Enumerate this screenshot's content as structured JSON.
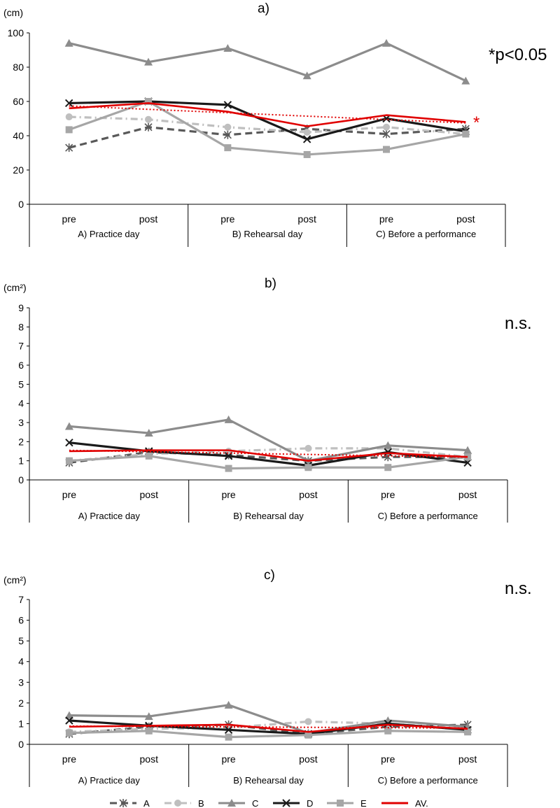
{
  "categories": [
    "pre",
    "post",
    "pre",
    "post",
    "pre",
    "post"
  ],
  "groups": [
    "A) Practice day",
    "B) Rehearsal day",
    "C) Before a performance"
  ],
  "legend": [
    {
      "name": "A",
      "color": "#595959",
      "dash": "10,6",
      "marker": "star"
    },
    {
      "name": "B",
      "color": "#bfbfbf",
      "dash": "10,5,2,5",
      "marker": "circle"
    },
    {
      "name": "C",
      "color": "#8c8c8c",
      "dash": "",
      "marker": "triangle"
    },
    {
      "name": "D",
      "color": "#1a1a1a",
      "dash": "",
      "marker": "x"
    },
    {
      "name": "E",
      "color": "#a6a6a6",
      "dash": "",
      "marker": "square"
    },
    {
      "name": "AV.",
      "color": "#e00000",
      "dash": "",
      "marker": "none"
    }
  ],
  "chart_data": [
    {
      "type": "line",
      "title": "a)",
      "unit": "(cm)",
      "significance": "*p<0.05",
      "marker_note": "*",
      "ylim": [
        0,
        100
      ],
      "yticks": [
        0,
        20,
        40,
        60,
        80,
        100
      ],
      "series": [
        {
          "name": "A",
          "values": [
            33,
            45,
            40.5,
            44,
            41,
            44
          ]
        },
        {
          "name": "B",
          "values": [
            51,
            49.5,
            45,
            42,
            45,
            41
          ]
        },
        {
          "name": "C",
          "values": [
            94,
            83,
            91,
            75,
            94,
            72
          ]
        },
        {
          "name": "D",
          "values": [
            59,
            60,
            58,
            38,
            50,
            42.5
          ]
        },
        {
          "name": "E",
          "values": [
            43.5,
            60,
            33,
            29,
            32,
            41
          ]
        },
        {
          "name": "AV.",
          "values": [
            56,
            59,
            54,
            45.5,
            52,
            48
          ]
        }
      ]
    },
    {
      "type": "line",
      "title": "b)",
      "unit": "(cm²)",
      "significance": "n.s.",
      "ylim": [
        0,
        9
      ],
      "yticks": [
        0,
        1,
        2,
        3,
        4,
        5,
        6,
        7,
        8,
        9
      ],
      "series": [
        {
          "name": "A",
          "values": [
            0.9,
            1.45,
            1.3,
            1.0,
            1.2,
            1.2
          ]
        },
        {
          "name": "B",
          "values": [
            1.0,
            1.35,
            1.5,
            1.65,
            1.65,
            1.2
          ]
        },
        {
          "name": "C",
          "values": [
            2.8,
            2.45,
            3.15,
            1.0,
            1.8,
            1.55
          ]
        },
        {
          "name": "D",
          "values": [
            1.95,
            1.5,
            1.25,
            0.75,
            1.45,
            0.9
          ]
        },
        {
          "name": "E",
          "values": [
            1.0,
            1.25,
            0.6,
            0.65,
            0.65,
            1.2
          ]
        },
        {
          "name": "AV.",
          "values": [
            1.5,
            1.55,
            1.55,
            1.0,
            1.4,
            1.2
          ]
        }
      ]
    },
    {
      "type": "line",
      "title": "c)",
      "unit": "(cm²)",
      "significance": "n.s.",
      "ylim": [
        0,
        7
      ],
      "yticks": [
        0,
        1,
        2,
        3,
        4,
        5,
        6,
        7
      ],
      "series": [
        {
          "name": "A",
          "values": [
            0.5,
            0.85,
            0.95,
            0.5,
            0.85,
            0.95
          ]
        },
        {
          "name": "B",
          "values": [
            0.6,
            0.75,
            0.8,
            1.1,
            1.0,
            0.75
          ]
        },
        {
          "name": "C",
          "values": [
            1.4,
            1.35,
            1.9,
            0.55,
            1.15,
            0.85
          ]
        },
        {
          "name": "D",
          "values": [
            1.15,
            0.9,
            0.7,
            0.5,
            1.0,
            0.7
          ]
        },
        {
          "name": "E",
          "values": [
            0.55,
            0.65,
            0.35,
            0.45,
            0.65,
            0.6
          ]
        },
        {
          "name": "AV.",
          "values": [
            0.85,
            0.9,
            0.95,
            0.6,
            0.95,
            0.75
          ]
        }
      ]
    }
  ]
}
